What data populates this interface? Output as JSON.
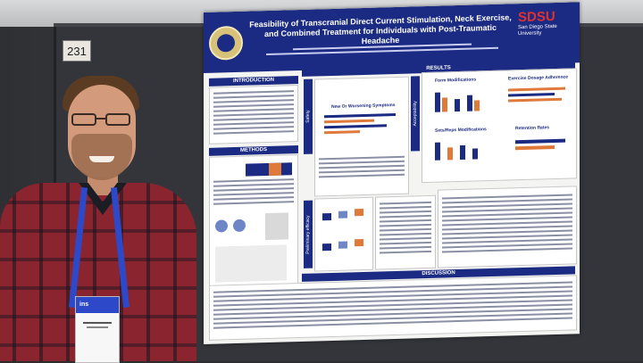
{
  "booth": {
    "number": "231"
  },
  "poster": {
    "title": "Feasibility of Transcranial Direct Current Stimulation, Neck Exercise, and Combined Treatment for Individuals with Post-Traumatic Headache",
    "brand": "SDSU",
    "brand_sub": "San Diego State University",
    "sections": {
      "introduction": "INTRODUCTION",
      "methods": "METHODS",
      "results": "RESULTS",
      "discussion": "DISCUSSION"
    },
    "panels": {
      "form_mod": "Form Modifications",
      "dosage": "Exercise Dosage Adherence",
      "sets_reps": "Sets/Reps Modifications",
      "retention": "Retention Rates",
      "new_symptoms": "New Or Worsening Symptoms",
      "safety": "Safety",
      "acceptability": "Acceptability",
      "efficacy": "Preliminary efficacy"
    }
  },
  "badge": {
    "org": "ins"
  },
  "colors": {
    "navy": "#1b2a82",
    "orange": "#e07a3a",
    "brand_red": "#e03131"
  }
}
